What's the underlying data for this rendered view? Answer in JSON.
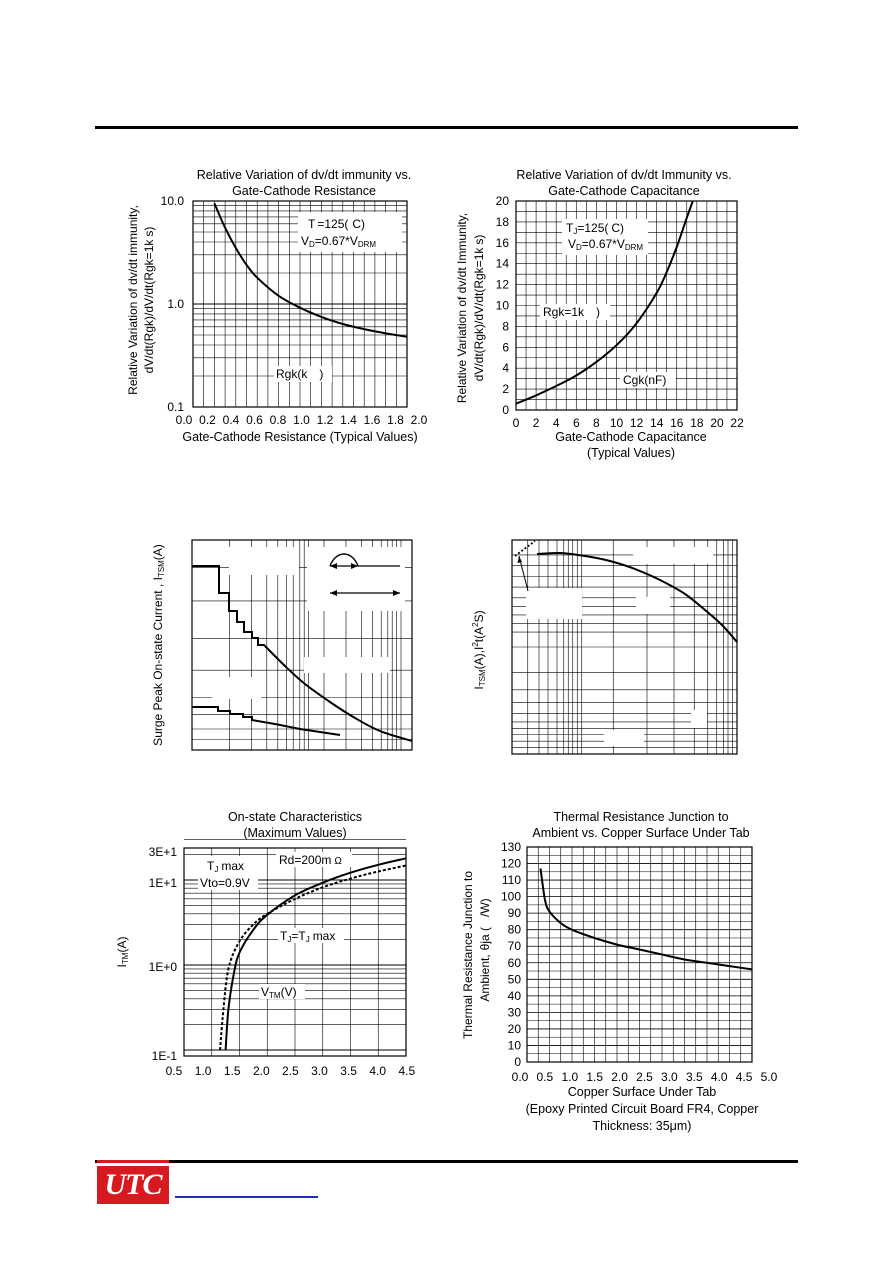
{
  "footer": {
    "logo_text": "UTC",
    "logo_color": "#d71920",
    "link_color": "#1f2bb8"
  },
  "charts": {
    "c1": {
      "title1": "Relative Variation of dv/dt immunity vs.",
      "title2": "Gate-Cathode Resistance",
      "ylabel1": "Relative Variation of dv/dt immunity,",
      "ylabel2": "dV/dt(Rgk)/dV/dt(Rgk=1k",
      "ylabel2b": "s)",
      "xlabel": "Gate-Cathode Resistance (Typical Values)",
      "ann1": "T",
      "ann1b": "=125(",
      "ann1c": "C)",
      "ann2": "V",
      "ann2b": "=0.67*V",
      "ann2c": "D",
      "ann2d": "DRM",
      "ann3": "Rgk(k",
      "ann3b": ")",
      "yticks": [
        "10.0",
        "1.0",
        "0.1"
      ],
      "xticks": [
        "0.0",
        "0.2",
        "0.4",
        "0.6",
        "0.8",
        "1.0",
        "1.2",
        "1.4",
        "1.6",
        "1.8",
        "2.0"
      ]
    },
    "c2": {
      "title1": "Relative Variation of dv/dt Immunity vs.",
      "title2": "Gate-Cathode Capacitance",
      "ylabel1": "Relative Variation of dv/dt Immunity,",
      "ylabel2": "dV/dt(Rgk)/dV/dt(Rgk=1k",
      "ylabel2b": "s)",
      "xlabel1": "Gate-Cathode Capacitance",
      "xlabel2": "(Typical Values)",
      "ann1": "T",
      "ann1sub": "J",
      "ann1b": "=125(",
      "ann1c": "C)",
      "ann2": "V",
      "ann2sub": "D",
      "ann2b": "=0.67*V",
      "ann2sub2": "DRM",
      "ann3": "Rgk=1k",
      "ann3b": ")",
      "ann4": "Cgk(nF)",
      "yticks": [
        "20",
        "18",
        "16",
        "14",
        "12",
        "10",
        "8",
        "6",
        "4",
        "2",
        "0"
      ],
      "xticks": [
        "0",
        "2",
        "4",
        "6",
        "8",
        "10",
        "12",
        "14",
        "16",
        "18",
        "20",
        "22"
      ]
    },
    "c3": {
      "ylabel": "Surge Peak On-state Current , I",
      "ylabel_sub": "TSM",
      "ylabel_b": "(A)"
    },
    "c4": {
      "ylabel": "I",
      "ylabel_sub": "TSM",
      "ylabel_b": "(A),I",
      "ylabel_c": "2",
      "ylabel_d": "t(A",
      "ylabel_e": "2",
      "ylabel_f": "S)"
    },
    "c5": {
      "title1": "On-state Characteristics",
      "title2": "(Maximum Values)",
      "ylabel": "I",
      "ylabel_sub": "TM",
      "ylabel_b": "(A)",
      "ann1": "T",
      "ann1sub": "J",
      "ann1b": "max",
      "ann2": "Vto=0.9V",
      "ann3": "Rd=200m",
      "ann4": "T",
      "ann4sub": "J",
      "ann4b": "=T",
      "ann4sub2": "J",
      "ann4c": "max",
      "ann5": "V",
      "ann5sub": "TM",
      "ann5b": "(V)",
      "yticks": [
        "3E+1",
        "1E+1",
        "1E+0",
        "1E-1"
      ],
      "xticks": [
        "0.5",
        "1.0",
        "1.5",
        "2.0",
        "2.5",
        "3.0",
        "3.5",
        "4.0",
        "4.5"
      ]
    },
    "c6": {
      "title1": "Thermal Resistance Junction to",
      "title2": "Ambient vs. Copper Surface Under Tab",
      "ylabel1": "Thermal Resistance Junction to",
      "ylabel2": "Ambient,",
      "ylabel2b": "θja (",
      "ylabel2c": "/W)",
      "xlabel1": "Copper Surface Under Tab",
      "xlabel2": "(Epoxy Printed Circuit Board FR4, Copper",
      "xlabel3": "Thickness: 35μm)",
      "yticks": [
        "130",
        "120",
        "110",
        "100",
        "90",
        "80",
        "70",
        "60",
        "50",
        "40",
        "30",
        "20",
        "10",
        "0"
      ],
      "xticks": [
        "0.0",
        "0.5",
        "1.0",
        "1.5",
        "2.0",
        "2.5",
        "3.0",
        "3.5",
        "4.0",
        "4.5",
        "5.0"
      ]
    }
  },
  "chart_data": [
    {
      "type": "line",
      "title": "Relative Variation of dv/dt immunity vs. Gate-Cathode Resistance",
      "xlabel": "Gate-Cathode Resistance (Typical Values)",
      "ylabel": "Relative Variation of dv/dt immunity, dV/dt(Rgk)/dV/dt(Rgk=1kΩ)",
      "xlim": [
        0,
        2.0
      ],
      "ylim": [
        0.1,
        10
      ],
      "yscale": "log",
      "grid": true,
      "x": [
        0.2,
        0.3,
        0.4,
        0.5,
        0.6,
        0.8,
        1.0,
        1.2,
        1.4,
        1.6,
        1.8,
        2.0
      ],
      "y": [
        9.5,
        5.5,
        3.5,
        2.4,
        1.8,
        1.2,
        0.92,
        0.75,
        0.64,
        0.57,
        0.52,
        0.48
      ]
    },
    {
      "type": "line",
      "title": "Relative Variation of dv/dt Immunity vs. Gate-Cathode Capacitance",
      "xlabel": "Gate-Cathode Capacitance (Typical Values)",
      "ylabel": "Relative Variation of dv/dt Immunity, dV/dt(Rgk)/dV/dt(Rgk=1kΩ)",
      "xlim": [
        0,
        22
      ],
      "ylim": [
        0,
        20
      ],
      "grid": true,
      "x": [
        0,
        2,
        4,
        6,
        8,
        10,
        12,
        14,
        15,
        16,
        17,
        17.6
      ],
      "y": [
        0.6,
        1.4,
        2.3,
        3.3,
        4.6,
        6.2,
        8.3,
        11.2,
        13.2,
        15.6,
        18.4,
        20
      ]
    },
    {
      "type": "line",
      "series": [
        {
          "values": [
            1.0,
            1.0,
            0.8,
            0.7,
            0.65,
            0.6,
            0.5,
            0.38,
            0.28,
            0.2,
            0.14,
            0.09,
            0.05
          ]
        },
        {
          "values": [
            0.25,
            0.25,
            0.22,
            0.2,
            0.18,
            0.16,
            0.14,
            0.12,
            0.1
          ]
        }
      ]
    },
    {
      "type": "line",
      "series": [
        {
          "values": [
            0.95,
            0.96,
            0.95,
            0.93,
            0.9,
            0.86,
            0.8,
            0.72,
            0.62,
            0.5
          ]
        }
      ]
    },
    {
      "type": "line",
      "title": "On-state Characteristics (Maximum Values)",
      "ylabel": "ITM(A)",
      "xlim": [
        0.5,
        4.5
      ],
      "ylim": [
        0.1,
        30
      ],
      "yscale": "log",
      "grid": true,
      "series": [
        {
          "name": "Tj max",
          "x": [
            1.25,
            1.3,
            1.4,
            1.5,
            1.75,
            2.0,
            2.5,
            3.0,
            3.5,
            4.0,
            4.5
          ],
          "y": [
            0.1,
            0.3,
            0.8,
            1.4,
            2.6,
            3.9,
            6.6,
            9.3,
            12.2,
            15.1,
            18.0
          ]
        },
        {
          "name": "Tj=Tj max",
          "x": [
            1.15,
            1.2,
            1.3,
            1.5,
            1.75,
            2.0,
            2.5,
            3.0,
            3.5,
            4.0,
            4.5
          ],
          "y": [
            0.1,
            0.25,
            0.9,
            1.9,
            3.0,
            4.0,
            6.0,
            8.2,
            10.4,
            12.6,
            14.8
          ]
        }
      ]
    },
    {
      "type": "line",
      "title": "Thermal Resistance Junction to Ambient vs. Copper Surface Under Tab",
      "xlabel": "Copper Surface Under Tab (Epoxy Printed Circuit Board FR4, Copper Thickness: 35μm)",
      "ylabel": "Thermal Resistance Junction to Ambient, θja (°C/W)",
      "xlim": [
        0,
        5.0
      ],
      "ylim": [
        0,
        130
      ],
      "grid": true,
      "x": [
        0.3,
        0.4,
        0.5,
        0.75,
        1.0,
        1.5,
        2.0,
        2.5,
        3.0,
        3.5,
        4.0,
        4.5,
        5.0
      ],
      "y": [
        117,
        98,
        91,
        84,
        80,
        75,
        71,
        68,
        65,
        62,
        60,
        58,
        56
      ]
    }
  ]
}
